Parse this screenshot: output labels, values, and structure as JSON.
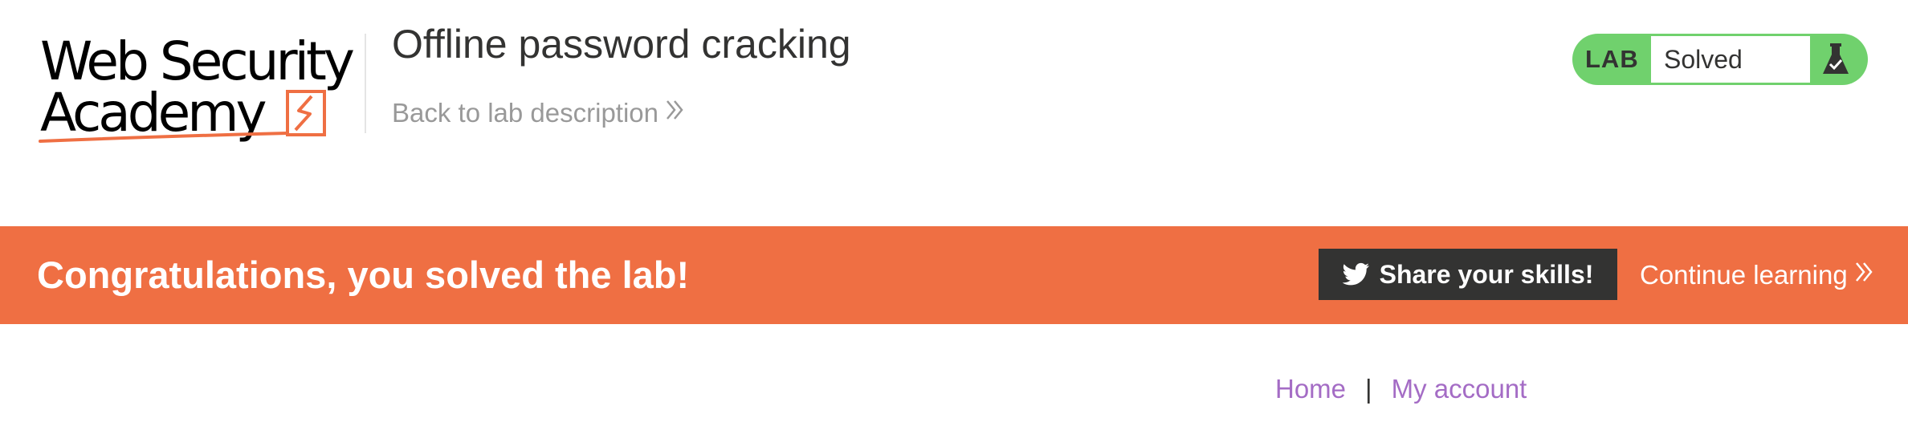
{
  "logo": {
    "line1": "Web Security",
    "line2": "Academy"
  },
  "lab": {
    "title": "Offline password cracking",
    "back_link": "Back to lab description"
  },
  "status": {
    "label": "LAB",
    "value": "Solved",
    "icon": "flask-check-icon",
    "color": "#70d16d"
  },
  "banner": {
    "message": "Congratulations, you solved the lab!",
    "share_label": "Share your skills!",
    "share_icon": "twitter-icon",
    "continue_label": "Continue learning",
    "color": "#ef6f43"
  },
  "nav": {
    "home": "Home",
    "separator": "|",
    "my_account": "My account",
    "link_color": "#a46cc5"
  }
}
